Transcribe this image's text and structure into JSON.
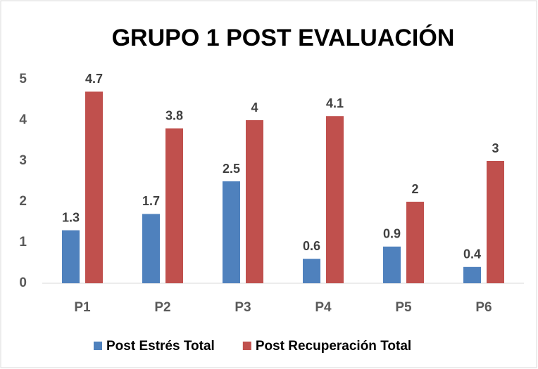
{
  "chart_data": {
    "type": "bar",
    "title": "GRUPO 1 POST EVALUACIÓN",
    "categories": [
      "P1",
      "P2",
      "P3",
      "P4",
      "P5",
      "P6"
    ],
    "series": [
      {
        "name": "Post Estrés Total",
        "color": "#4f81bd",
        "values": [
          1.3,
          1.7,
          2.5,
          0.6,
          0.9,
          0.4
        ]
      },
      {
        "name": "Post Recuperación Total",
        "color": "#c0504d",
        "values": [
          4.7,
          3.8,
          4,
          4.1,
          2,
          3
        ]
      }
    ],
    "ylim": [
      0,
      5
    ],
    "yticks": [
      0,
      1,
      2,
      3,
      4,
      5
    ],
    "grid": false,
    "legend": "bottom"
  }
}
